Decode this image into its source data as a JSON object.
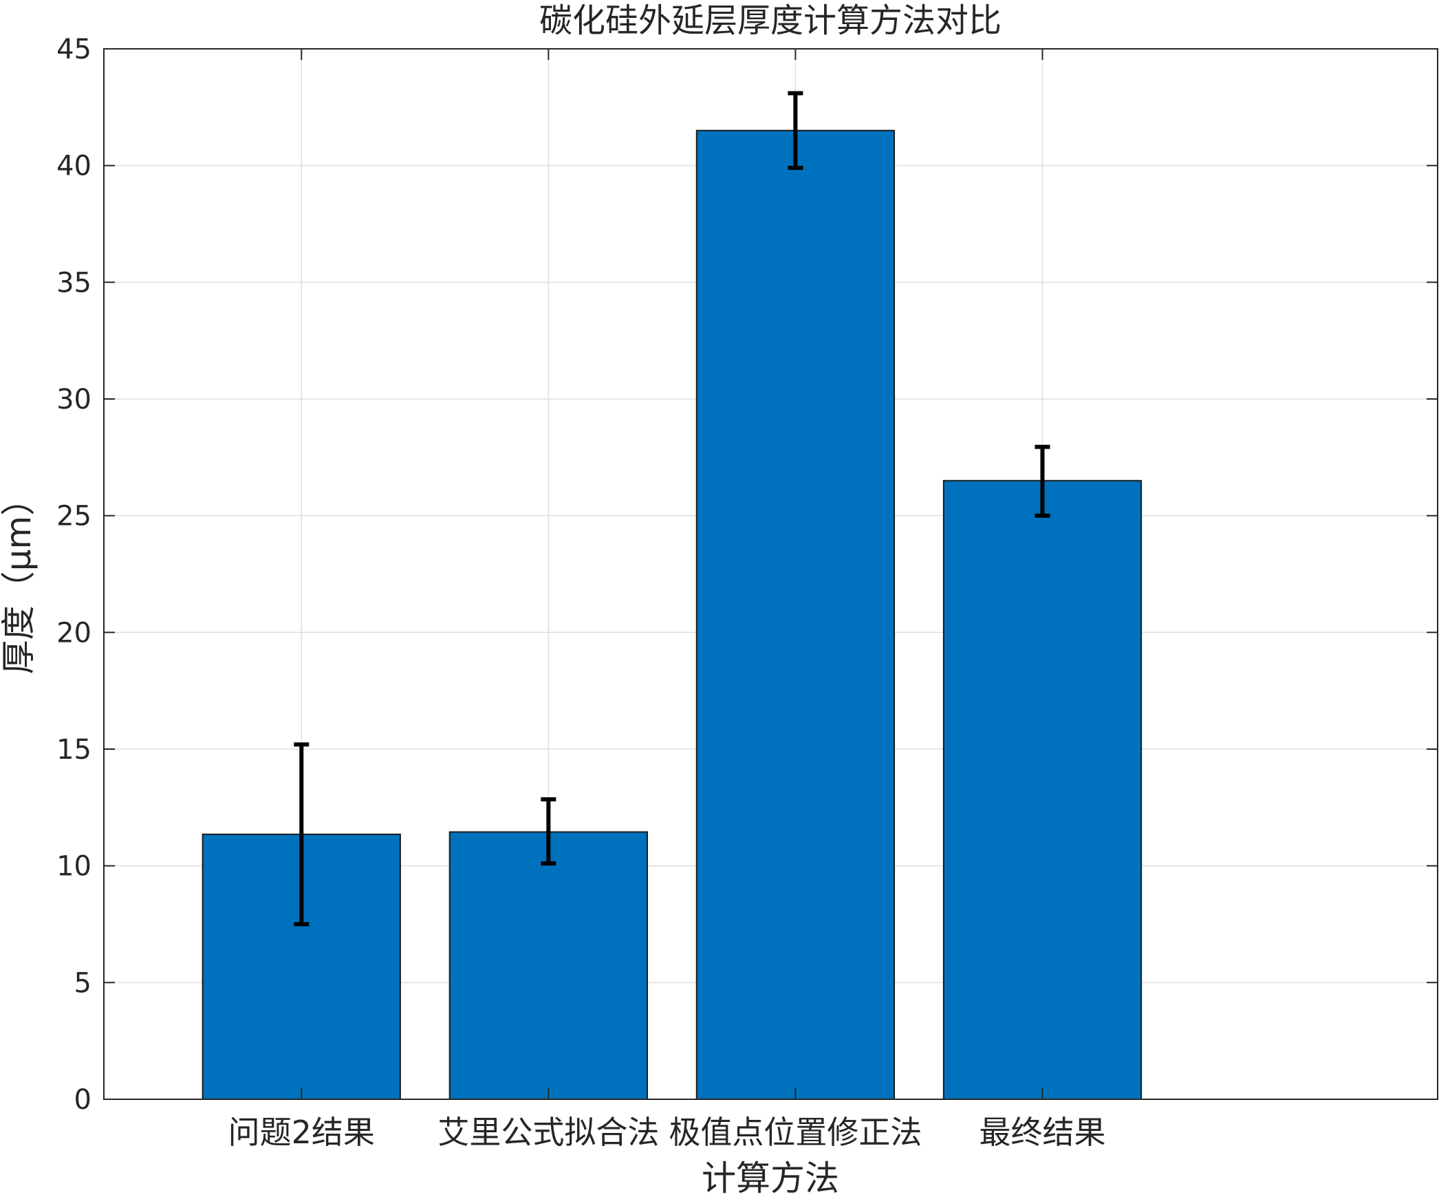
{
  "chart_data": {
    "type": "bar",
    "title": "碳化硅外延层厚度计算方法对比",
    "xlabel": "计算方法",
    "ylabel": "厚度（μm）",
    "categories": [
      "问题2结果",
      "艾里公式拟合法",
      "极值点位置修正法",
      "最终结果"
    ],
    "series": [
      {
        "values": [
          11.35,
          11.45,
          41.5,
          26.5
        ],
        "error_low": [
          7.5,
          10.1,
          39.9,
          25.0
        ],
        "error_high": [
          15.2,
          12.85,
          43.1,
          27.95
        ],
        "color": "#0072BD"
      }
    ],
    "xlim": [
      0.2,
      5.6
    ],
    "x_positions": [
      1,
      2,
      3,
      4
    ],
    "ylim": [
      0,
      45
    ],
    "yticks": [
      0,
      5,
      10,
      15,
      20,
      25,
      30,
      35,
      40,
      45
    ],
    "grid": true,
    "legend": "none",
    "errorbar_color": "#000000"
  }
}
